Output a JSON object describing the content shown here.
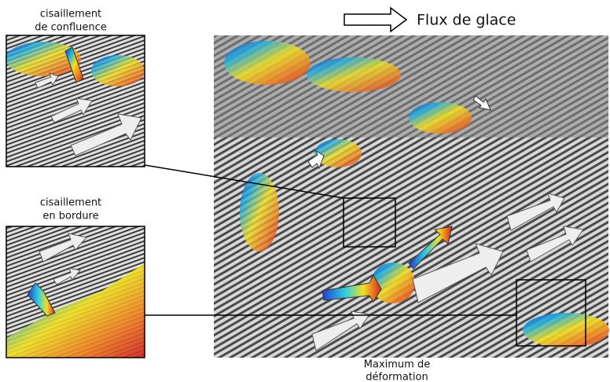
{
  "legend": {
    "flow": "Flux de glace"
  },
  "insets": [
    {
      "title_lines": [
        "cisaillement",
        "de confluence"
      ]
    },
    {
      "title_lines": [
        "cisaillement",
        "en bordure"
      ]
    }
  ],
  "annotation": {
    "lines": [
      "Maximum de",
      "déformation"
    ]
  }
}
